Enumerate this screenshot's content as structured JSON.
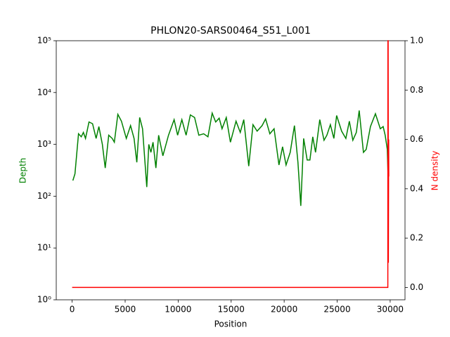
{
  "chart_data": {
    "type": "line",
    "title": "PHLON20-SARS00464_S51_L001",
    "xlabel": "Position",
    "ylabel": "Depth",
    "y2label": "N density",
    "ylabel_color": "green",
    "y2label_color": "red",
    "xlim": [
      -1500,
      31400
    ],
    "xticks": [
      0,
      5000,
      10000,
      15000,
      20000,
      25000,
      30000
    ],
    "ylim": [
      1,
      100000
    ],
    "log_y": true,
    "yticks": [
      {
        "value": 1,
        "label": "10⁰"
      },
      {
        "value": 10,
        "label": "10¹"
      },
      {
        "value": 100,
        "label": "10²"
      },
      {
        "value": 1000,
        "label": "10³"
      },
      {
        "value": 10000,
        "label": "10⁴"
      },
      {
        "value": 100000,
        "label": "10⁵"
      }
    ],
    "y2lim": [
      -0.05,
      1.0
    ],
    "y2ticks": [
      {
        "value": 0,
        "label": "0.0"
      },
      {
        "value": 0.2,
        "label": "0.2"
      },
      {
        "value": 0.4,
        "label": "0.4"
      },
      {
        "value": 0.6,
        "label": "0.6"
      },
      {
        "value": 0.8,
        "label": "0.8"
      },
      {
        "value": 1.0,
        "label": "1.0"
      }
    ],
    "series": [
      {
        "color": "green",
        "axis": "y",
        "x": [
          66,
          265,
          600,
          860,
          1060,
          1260,
          1590,
          1925,
          2260,
          2520,
          2850,
          3120,
          3450,
          3780,
          3980,
          4310,
          4650,
          5110,
          5510,
          5840,
          6100,
          6370,
          6640,
          7040,
          7230,
          7430,
          7630,
          7900,
          8160,
          8560,
          9090,
          9620,
          9950,
          10350,
          10750,
          11150,
          11550,
          11950,
          12410,
          12810,
          13210,
          13540,
          13870,
          14140,
          14540,
          14930,
          15460,
          15860,
          16190,
          16660,
          17060,
          17450,
          17920,
          18250,
          18650,
          19050,
          19510,
          19850,
          20180,
          20570,
          20970,
          21300,
          21570,
          21840,
          22170,
          22430,
          22700,
          22960,
          23360,
          23760,
          24030,
          24360,
          24690,
          24950,
          25420,
          25820,
          26150,
          26480,
          26810,
          27080,
          27480,
          27740,
          28140,
          28610,
          29070,
          29340,
          29530,
          29730,
          29800
        ],
        "values": [
          200,
          270,
          1600,
          1400,
          1700,
          1300,
          2700,
          2500,
          1300,
          2200,
          1000,
          350,
          1500,
          1300,
          1100,
          3800,
          2800,
          1300,
          2300,
          1300,
          450,
          3300,
          2000,
          150,
          1000,
          700,
          1100,
          350,
          1500,
          600,
          1500,
          3000,
          1500,
          3000,
          1500,
          3700,
          3300,
          1500,
          1600,
          1400,
          4000,
          2700,
          3200,
          2000,
          3300,
          1100,
          2800,
          1700,
          3000,
          380,
          2400,
          1800,
          2300,
          3100,
          1600,
          2000,
          400,
          900,
          400,
          700,
          2300,
          450,
          65,
          1300,
          500,
          500,
          1400,
          700,
          3000,
          1200,
          1500,
          2400,
          1300,
          3600,
          1800,
          1300,
          2800,
          1200,
          1700,
          4500,
          700,
          800,
          2200,
          3900,
          2000,
          2200,
          1500,
          800,
          260
        ]
      },
      {
        "color": "red",
        "axis": "y2",
        "x": [
          0,
          29780,
          29790,
          29810,
          29830,
          29860,
          29870
        ],
        "values": [
          0,
          0,
          1.0,
          1.0,
          0.1,
          0.6,
          0.45
        ]
      }
    ]
  }
}
